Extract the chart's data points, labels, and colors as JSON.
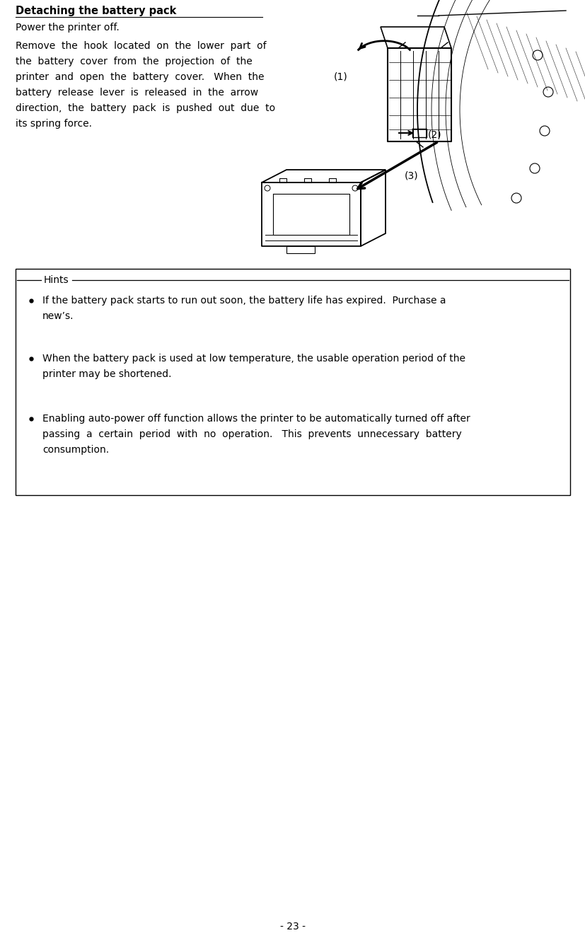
{
  "title": "Detaching the battery pack",
  "title_fontsize": 10.5,
  "body_fontsize": 10.0,
  "hints_fontsize": 10.0,
  "background_color": "#ffffff",
  "text_color": "#000000",
  "page_number": "- 23 -",
  "para1": "Power the printer off.",
  "hints_label": "Hints",
  "hint1_line1": "If the battery pack starts to run out soon, the battery life has expired.  Purchase a",
  "hint1_line2": "new’s.",
  "hint2_line1": "When the battery pack is used at low temperature, the usable operation period of the",
  "hint2_line2": "printer may be shortened.",
  "hint3_line1": "Enabling auto-power off function allows the printer to be automatically turned off after",
  "hint3_line2": "passing  a  certain  period  with  no  operation.   This  prevents  unnecessary  battery",
  "hint3_line3": "consumption.",
  "para2_lines": [
    "Remove  the  hook  located  on  the  lower  part  of",
    "the  battery  cover  from  the  projection  of  the",
    "printer  and  open  the  battery  cover.   When  the",
    "battery  release  lever  is  released  in  the  arrow",
    "direction,  the  battery  pack  is  pushed  out  due  to",
    "its spring force."
  ]
}
